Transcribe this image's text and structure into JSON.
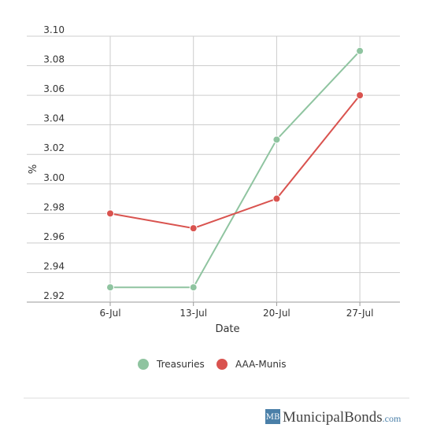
{
  "chart_data": {
    "type": "line",
    "x_label": "Date",
    "y_label": "%",
    "categories": [
      "6-Jul",
      "13-Jul",
      "20-Jul",
      "27-Jul"
    ],
    "series": [
      {
        "name": "Treasuries",
        "color": "#8fc4a0",
        "values": [
          2.93,
          2.93,
          3.03,
          3.09
        ]
      },
      {
        "name": "AAA-Munis",
        "color": "#d9534f",
        "values": [
          2.98,
          2.97,
          2.99,
          3.06
        ]
      }
    ],
    "ylim": [
      2.92,
      3.1
    ],
    "yticks": [
      2.92,
      2.94,
      2.96,
      2.98,
      {
        "value": 3.0,
        "label": "3.00"
      },
      3.02,
      3.04,
      3.06,
      3.08,
      {
        "value": 3.1,
        "label": "3.10"
      }
    ],
    "grid": true,
    "legend": "bottom"
  },
  "footer": {
    "logo_mark": "MB",
    "brand": "MunicipalBonds",
    "domain": ".com"
  }
}
